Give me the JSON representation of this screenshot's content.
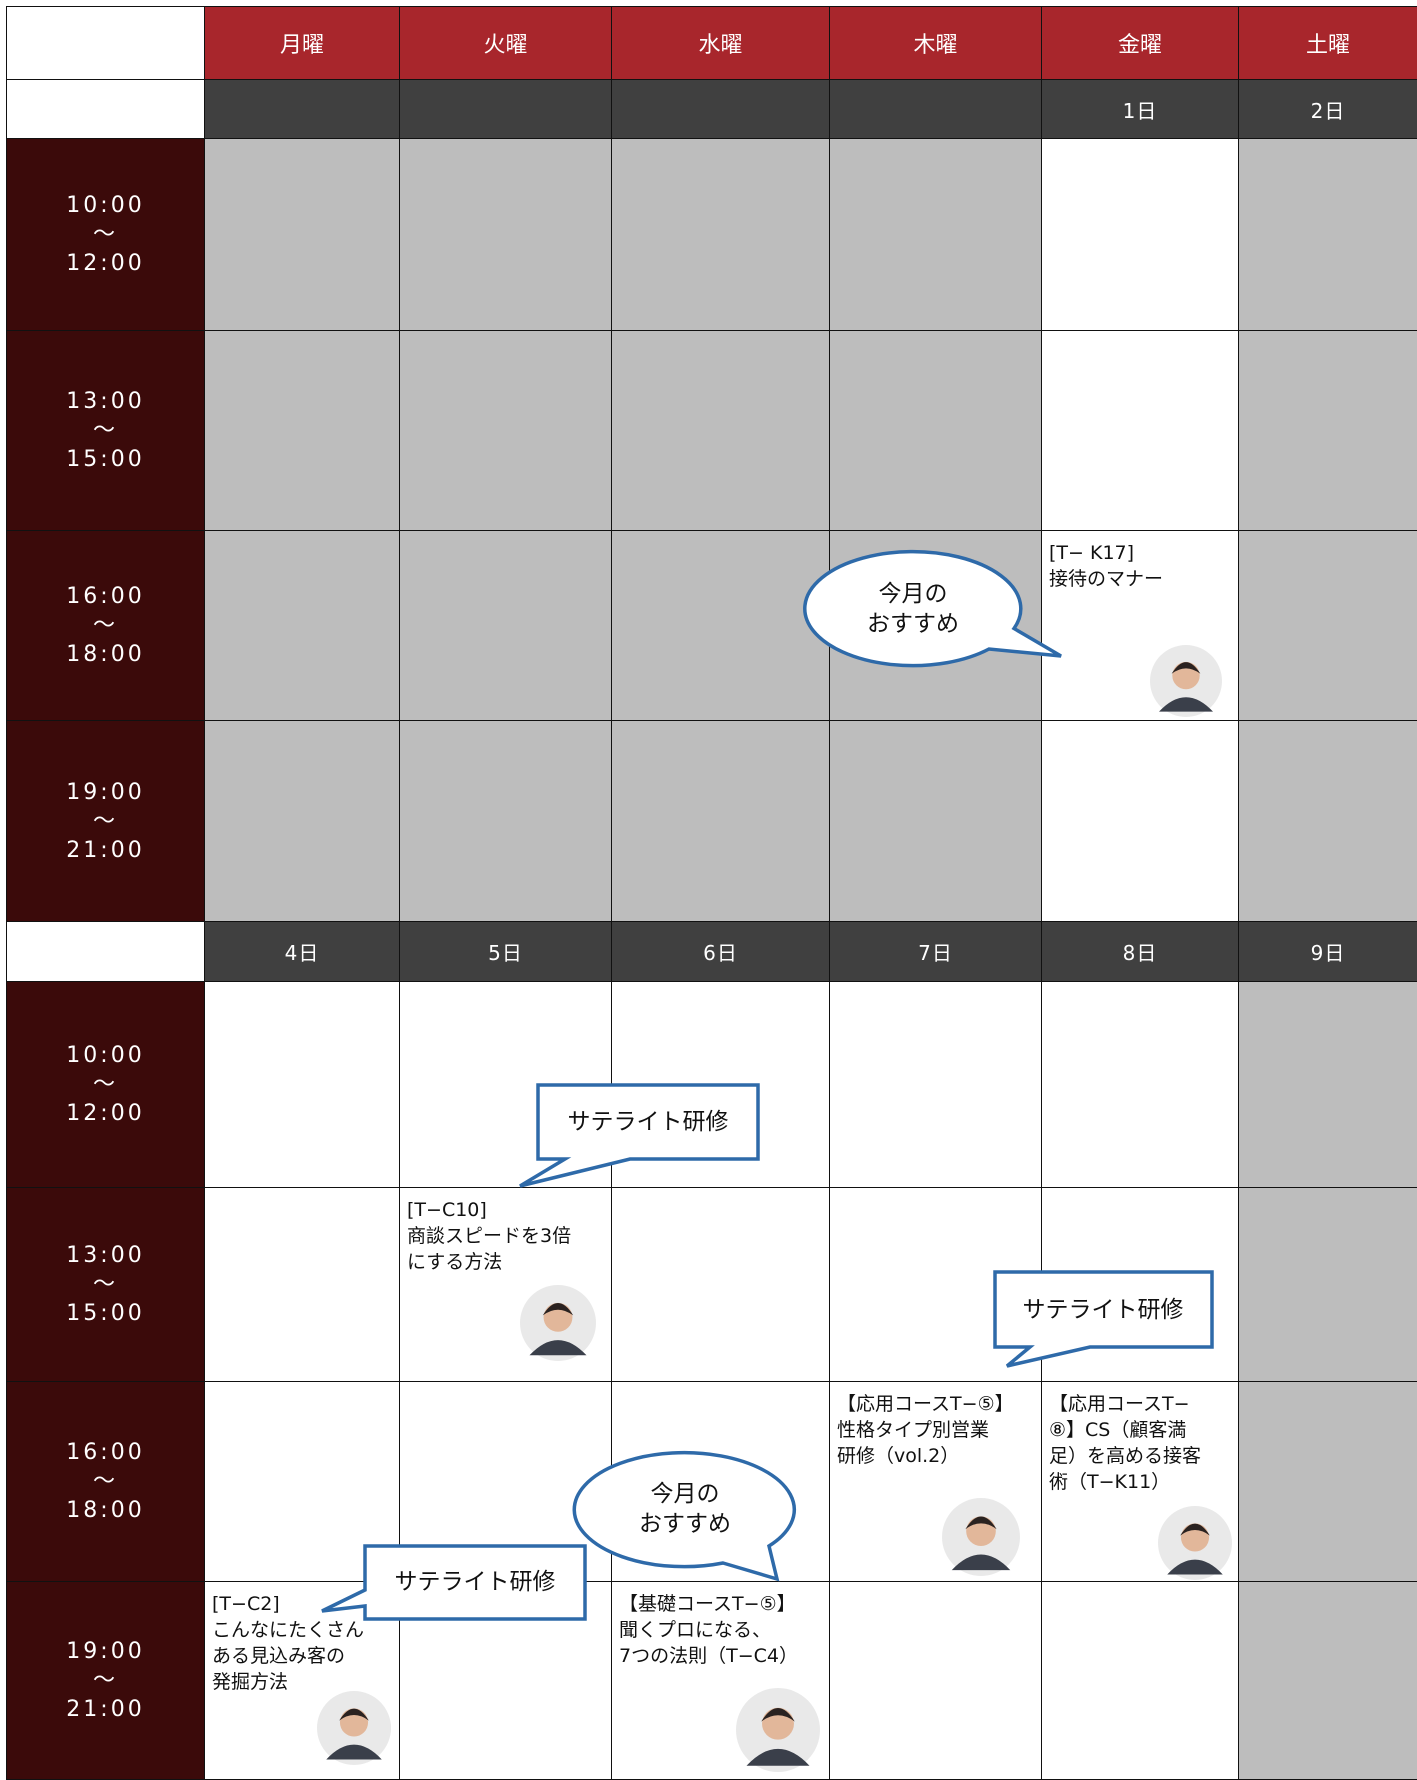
{
  "header": {
    "days": [
      "月曜",
      "火曜",
      "水曜",
      "木曜",
      "金曜",
      "土曜"
    ]
  },
  "time_slots": [
    "10:00\n～\n12:00",
    "13:00\n～\n15:00",
    "16:00\n～\n18:00",
    "19:00\n～\n21:00"
  ],
  "weeks": [
    {
      "dates": [
        "1日",
        "2日"
      ],
      "sessions": [
        "[T− K17]\n接待のマナー"
      ]
    },
    {
      "dates": [
        "4日",
        "5日",
        "6日",
        "7日",
        "8日",
        "9日"
      ],
      "sessions": [
        "[T−C10]\n商談スピードを3倍\nにする方法",
        "【応用コースT−⑤】\n性格タイプ別営業\n研修（vol.2）",
        "【応用コースT−\n⑧】CS（顧客満\n足）を高める接客\n術（T−K11）",
        "[T−C2]\nこんなにたくさん\nある見込み客の\n発掘方法",
        "【基礎コースT−⑤】\n聞くプロになる、\n7つの法則（T−C4）"
      ]
    }
  ],
  "callouts": [
    "今月の\nおすすめ",
    "今月の\nおすすめ",
    "サテライト研修",
    "サテライト研修",
    "サテライト研修"
  ]
}
